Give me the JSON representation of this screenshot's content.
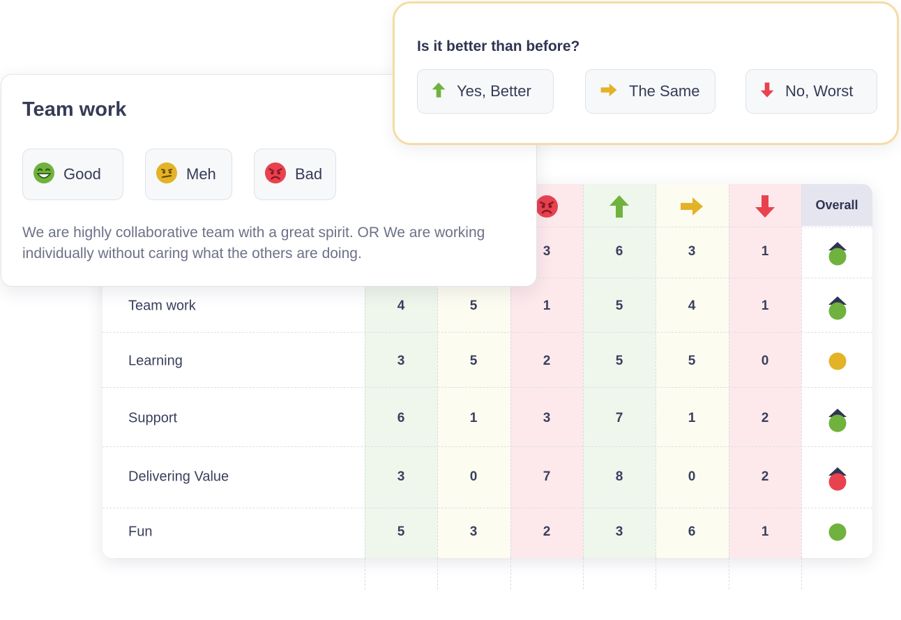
{
  "question": {
    "title": "Is it better than before?",
    "options": [
      {
        "label": "Yes, Better",
        "icon": "arrow-up-icon",
        "color": "#6fb23d"
      },
      {
        "label": "The Same",
        "icon": "arrow-right-icon",
        "color": "#e3b226"
      },
      {
        "label": "No, Worst",
        "icon": "arrow-down-icon",
        "color": "#e8424f"
      }
    ]
  },
  "team_card": {
    "title": "Team work",
    "moods": [
      {
        "label": "Good",
        "icon": "happy-face-icon",
        "color": "#6fb23d"
      },
      {
        "label": "Meh",
        "icon": "neutral-face-icon",
        "color": "#e3b226"
      },
      {
        "label": "Bad",
        "icon": "angry-face-icon",
        "color": "#e8424f"
      }
    ],
    "description": "We are highly collaborative team with a great spirit. OR We are working individually without caring what the others are doing."
  },
  "table": {
    "overall_header": "Overall",
    "rows": [
      {
        "label": "",
        "values": [
          "",
          "",
          "3",
          "6",
          "3",
          "1"
        ],
        "overall": "green-up"
      },
      {
        "label": "Team work",
        "values": [
          "4",
          "5",
          "1",
          "5",
          "4",
          "1"
        ],
        "overall": "green-up"
      },
      {
        "label": "Learning",
        "values": [
          "3",
          "5",
          "2",
          "5",
          "5",
          "0"
        ],
        "overall": "yellow"
      },
      {
        "label": "Support",
        "values": [
          "6",
          "1",
          "3",
          "7",
          "1",
          "2"
        ],
        "overall": "green-up"
      },
      {
        "label": "Delivering Value",
        "values": [
          "3",
          "0",
          "7",
          "8",
          "0",
          "2"
        ],
        "overall": "red-up"
      },
      {
        "label": "Fun",
        "values": [
          "5",
          "3",
          "2",
          "3",
          "6",
          "1"
        ],
        "overall": "green"
      }
    ]
  },
  "colors": {
    "green": "#6fb23d",
    "yellow": "#e3b226",
    "red": "#e8424f",
    "dark": "#2f3452"
  }
}
